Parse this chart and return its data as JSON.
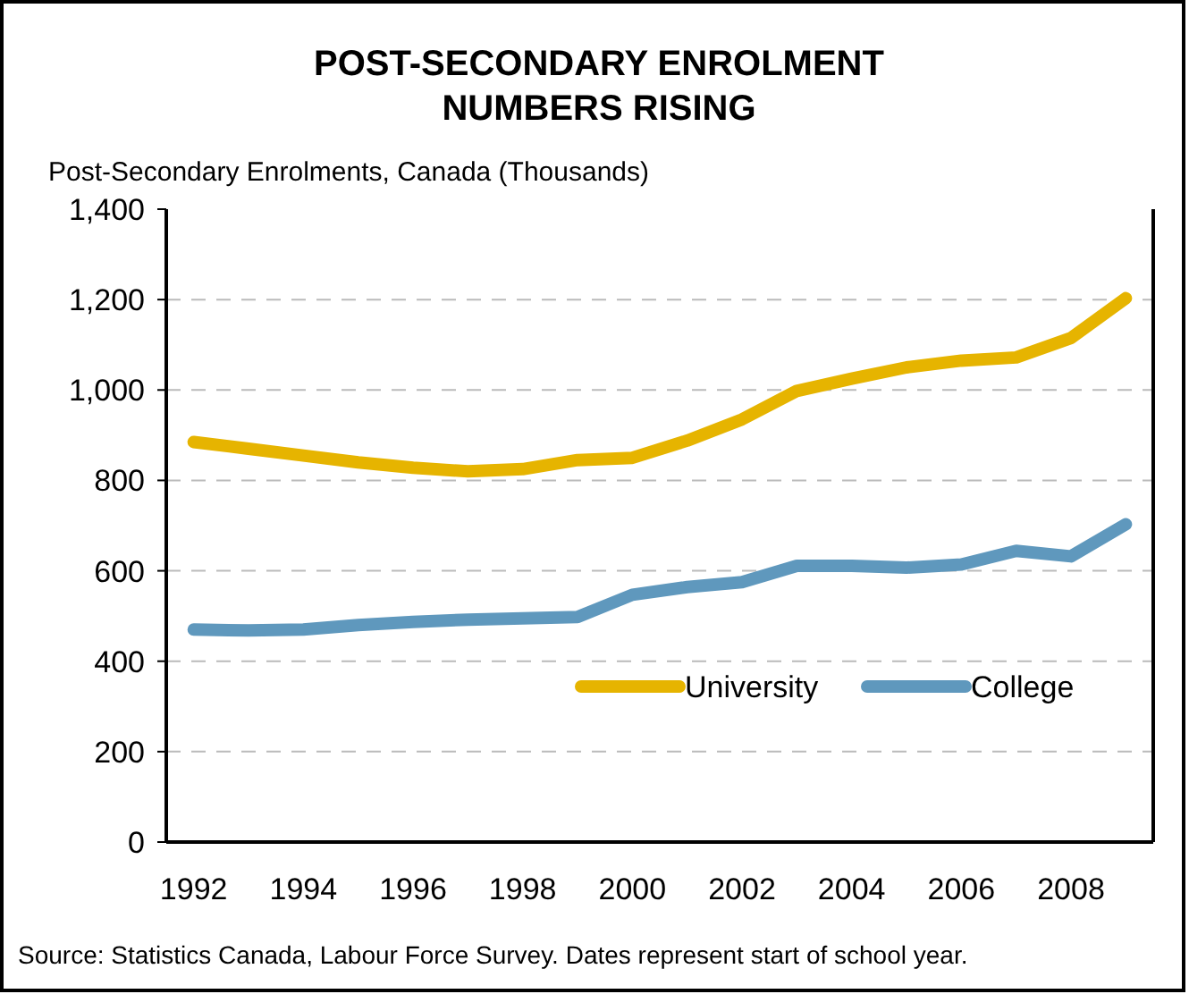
{
  "chart_data": {
    "type": "line",
    "title": "POST-SECONDARY ENROLMENT NUMBERS RISING",
    "ylabel": "Post-Secondary Enrolments, Canada (Thousands)",
    "x": [
      1992,
      1993,
      1994,
      1995,
      1996,
      1997,
      1998,
      1999,
      2000,
      2001,
      2002,
      2003,
      2004,
      2005,
      2006,
      2007,
      2008,
      2009
    ],
    "series": [
      {
        "name": "University",
        "color": "#e6b400",
        "values": [
          885,
          870,
          855,
          840,
          828,
          820,
          825,
          845,
          850,
          888,
          935,
          998,
          1025,
          1050,
          1065,
          1072,
          1115,
          1203
        ]
      },
      {
        "name": "College",
        "color": "#5f98bd",
        "values": [
          470,
          468,
          470,
          480,
          487,
          492,
          495,
          498,
          547,
          564,
          575,
          611,
          611,
          607,
          614,
          644,
          632,
          703
        ]
      }
    ],
    "xlim": [
      1991.5,
      2009.5
    ],
    "xticks": [
      1992,
      1994,
      1996,
      1998,
      2000,
      2002,
      2004,
      2006,
      2008
    ],
    "ylim": [
      0,
      1400
    ],
    "yticks": [
      {
        "value": 0,
        "label": "0"
      },
      {
        "value": 200,
        "label": "200"
      },
      {
        "value": 400,
        "label": "400"
      },
      {
        "value": 600,
        "label": "600"
      },
      {
        "value": 800,
        "label": "800"
      },
      {
        "value": 1000,
        "label": "1,000"
      },
      {
        "value": 1200,
        "label": "1,200"
      },
      {
        "value": 1400,
        "label": "1,400"
      }
    ],
    "grid": "y",
    "legend": "right",
    "line_style": "solid",
    "marker": "none",
    "annotations": [
      "Source: Statistics Canada, Labour Force Survey. Dates represent start of school year."
    ]
  }
}
